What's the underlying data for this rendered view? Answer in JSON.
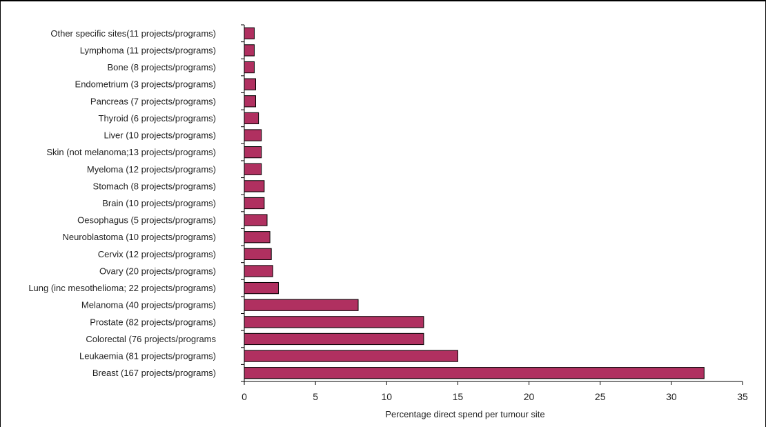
{
  "chart_data": {
    "type": "bar",
    "orientation": "horizontal",
    "title": "",
    "xlabel": "Percentage direct spend per tumour site",
    "ylabel": "",
    "xlim": [
      0,
      35
    ],
    "xticks": [
      0,
      5,
      10,
      15,
      20,
      25,
      30,
      35
    ],
    "grid": false,
    "legend": "none",
    "bar_color": "#b03060",
    "categories": [
      "Other specific sites(11 projects/programs)",
      "Lymphoma (11 projects/programs)",
      "Bone (8 projects/programs)",
      "Endometrium (3 projects/programs)",
      "Pancreas (7 projects/programs)",
      "Thyroid (6 projects/programs)",
      "Liver (10 projects/programs)",
      "Skin (not melanoma;13 projects/programs)",
      "Myeloma (12 projects/programs)",
      "Stomach (8 projects/programs)",
      "Brain (10 projects/programs)",
      "Oesophagus (5 projects/programs)",
      "Neuroblastoma (10 projects/programs)",
      "Cervix (12 projects/programs)",
      "Ovary (20 projects/programs)",
      "Lung (inc mesothelioma; 22 projects/programs)",
      "Melanoma (40 projects/programs)",
      "Prostate (82 projects/programs)",
      "Colorectal (76 projects/programs",
      "Leukaemia (81 projects/programs)",
      "Breast (167 projects/programs)"
    ],
    "values": [
      0.7,
      0.7,
      0.7,
      0.8,
      0.8,
      1.0,
      1.2,
      1.2,
      1.2,
      1.4,
      1.4,
      1.6,
      1.8,
      1.9,
      2.0,
      2.4,
      8.0,
      12.6,
      12.6,
      15.0,
      32.3
    ]
  }
}
